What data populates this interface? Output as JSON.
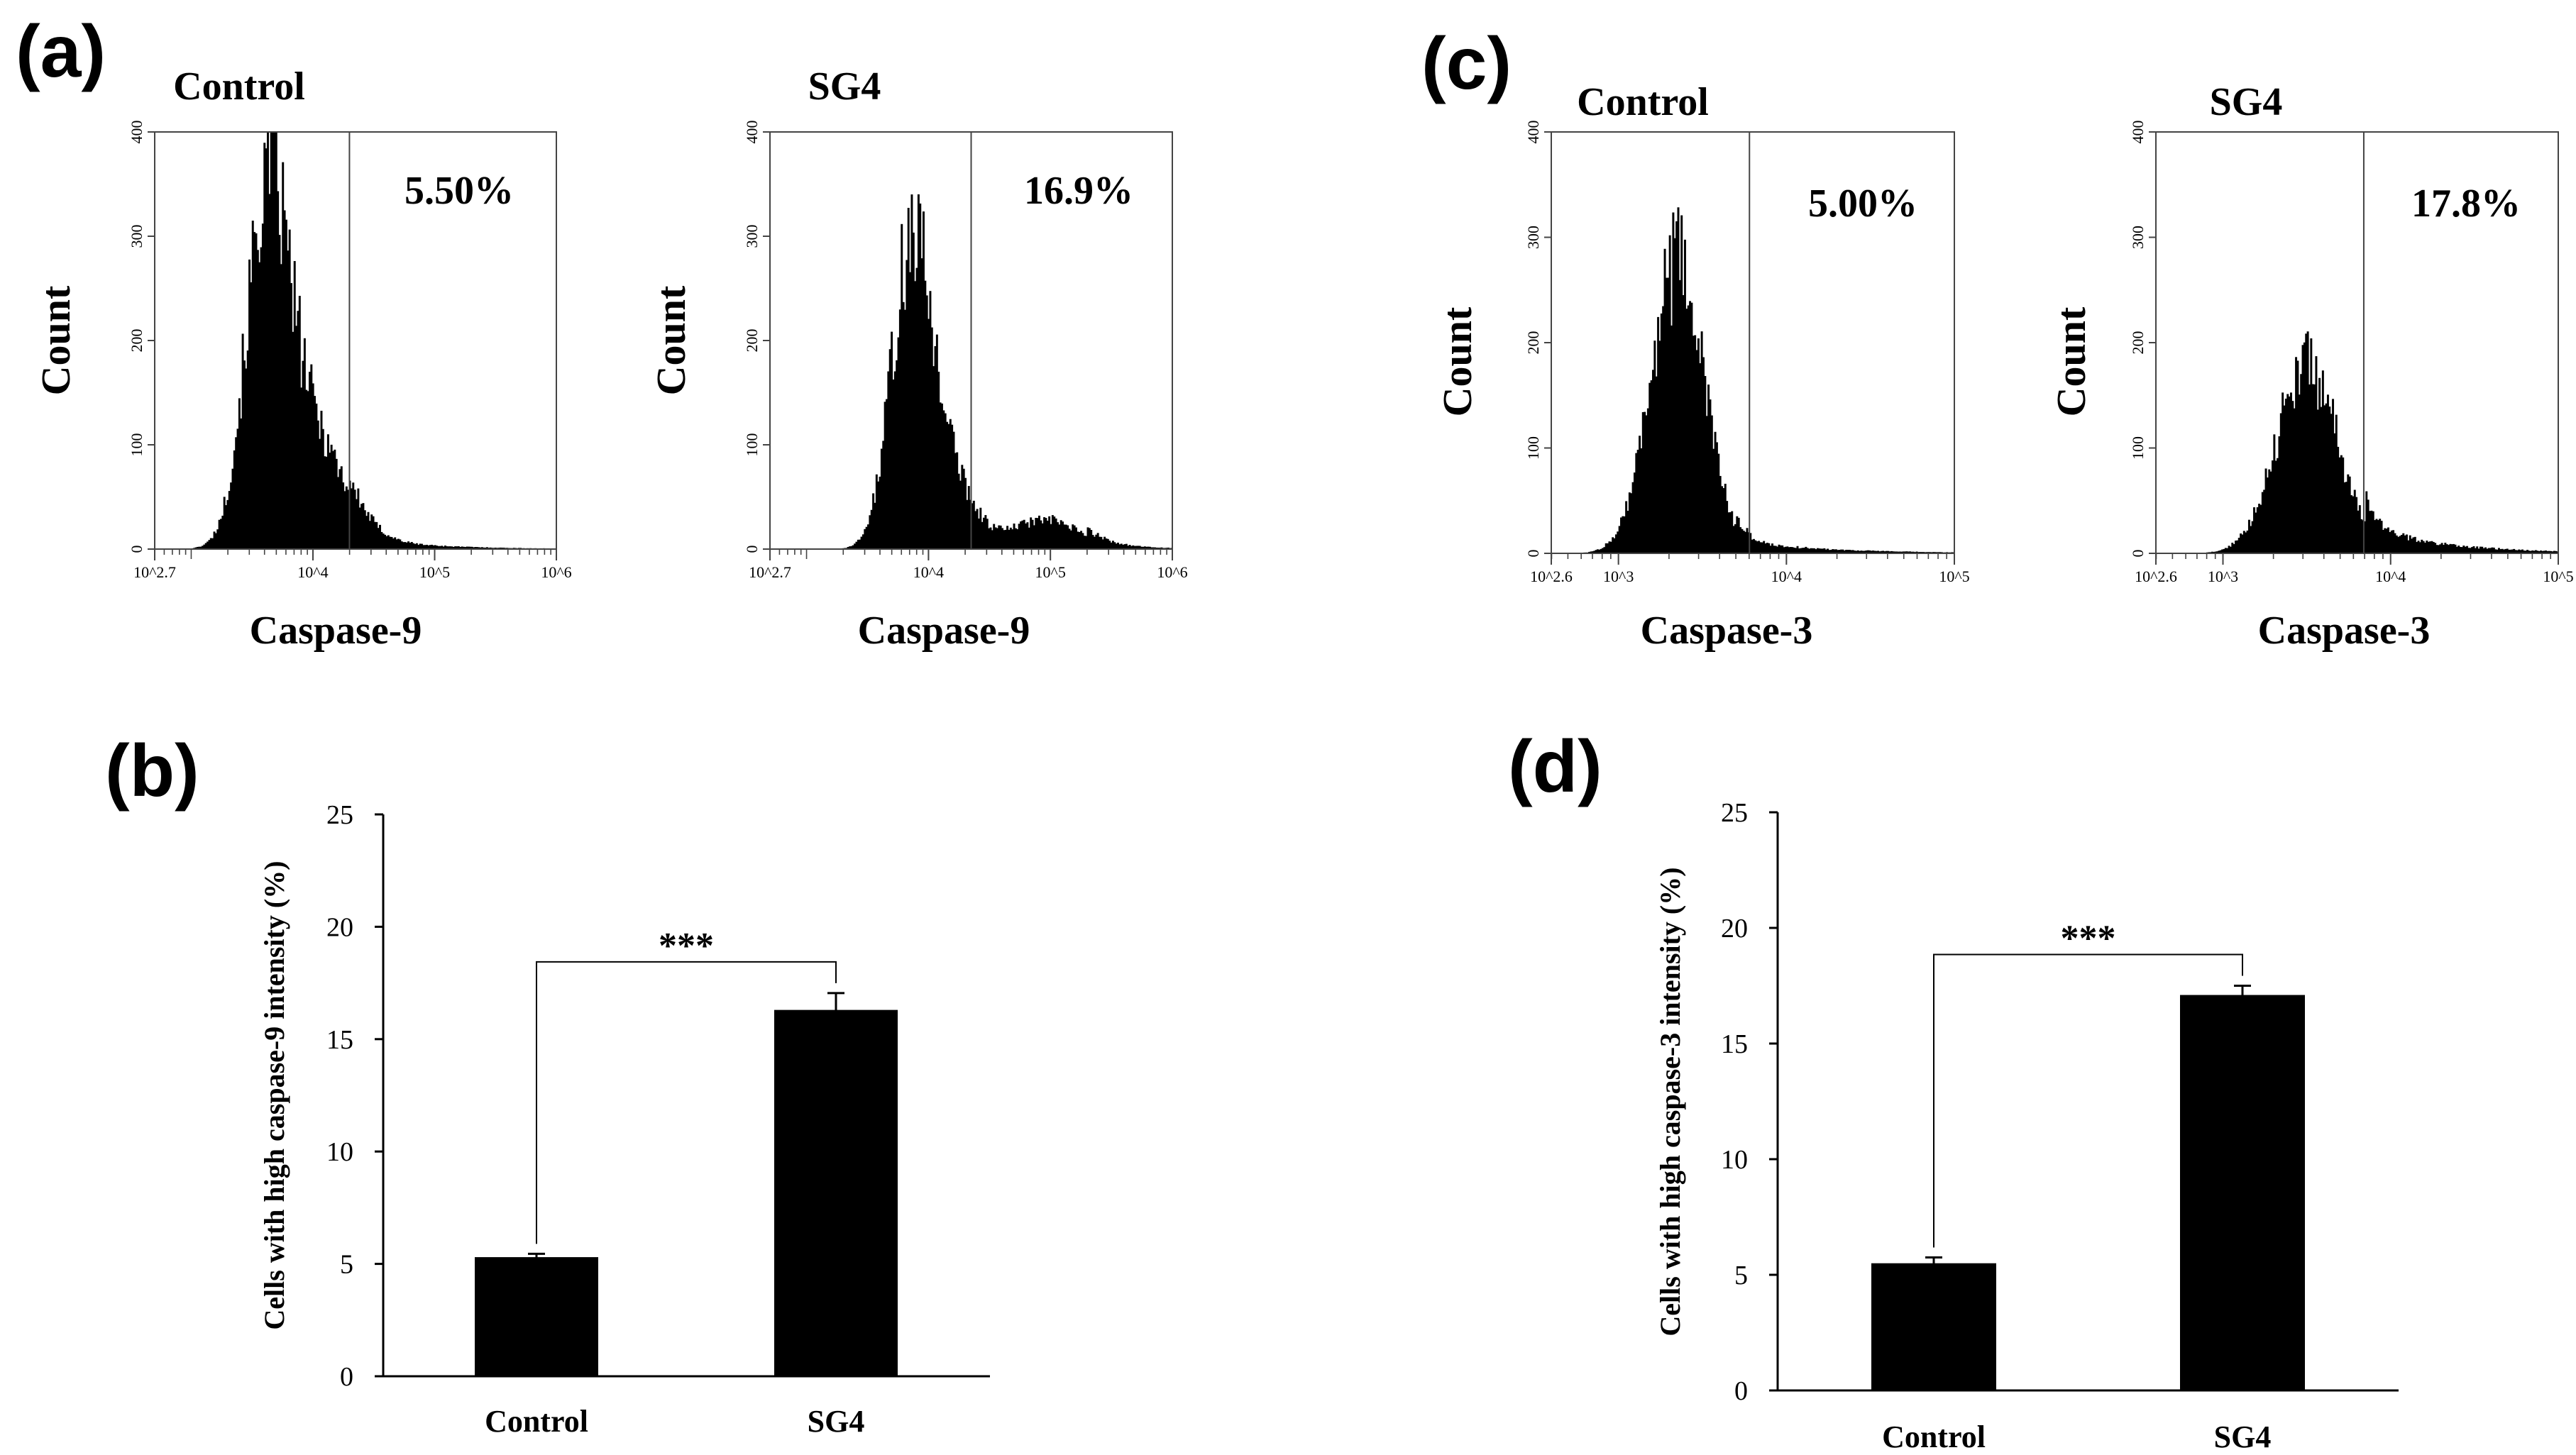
{
  "figure": {
    "panels": [
      {
        "letter": "(a)"
      },
      {
        "letter": "(b)"
      },
      {
        "letter": "(c)"
      },
      {
        "letter": "(d)"
      }
    ]
  },
  "chart_data": [
    {
      "id": "a-control",
      "type": "histogram",
      "panel": "(a)",
      "title": "Control",
      "xlabel": "Caspase-9",
      "ylabel": "Count",
      "ylim": [
        0,
        400
      ],
      "yticks": [
        "0",
        "100",
        "200",
        "300",
        "400"
      ],
      "x_log": true,
      "xlim_log10": [
        2.7,
        6
      ],
      "xticks": [
        {
          "pos": 2.7,
          "label": "10^2.7"
        },
        {
          "pos": 4,
          "label": "10^4"
        },
        {
          "pos": 5,
          "label": "10^5"
        },
        {
          "pos": 6,
          "label": "10^6"
        }
      ],
      "gate_log10": 4.3,
      "percent_label": "5.50%",
      "distribution": [
        {
          "mu": 3.62,
          "sigma": 0.17,
          "amp": 300
        },
        {
          "mu": 3.95,
          "sigma": 0.28,
          "amp": 120
        }
      ],
      "tail": {
        "start": 4.3,
        "level": 12,
        "decay": 0.55
      }
    },
    {
      "id": "a-sg4",
      "type": "histogram",
      "panel": "(a)",
      "title": "SG4",
      "xlabel": "Caspase-9",
      "ylabel": "Count",
      "ylim": [
        0,
        400
      ],
      "yticks": [
        "0",
        "100",
        "200",
        "300",
        "400"
      ],
      "x_log": true,
      "xlim_log10": [
        2.7,
        6
      ],
      "xticks": [
        {
          "pos": 2.7,
          "label": "10^2.7"
        },
        {
          "pos": 4,
          "label": "10^4"
        },
        {
          "pos": 5,
          "label": "10^5"
        },
        {
          "pos": 6,
          "label": "10^6"
        }
      ],
      "gate_log10": 4.35,
      "percent_label": "16.9%",
      "distribution": [
        {
          "mu": 3.85,
          "sigma": 0.16,
          "amp": 255
        },
        {
          "mu": 4.1,
          "sigma": 0.22,
          "amp": 85
        },
        {
          "mu": 4.95,
          "sigma": 0.28,
          "amp": 28
        }
      ],
      "tail": {
        "start": 5.3,
        "level": 6,
        "decay": 0.4
      }
    },
    {
      "id": "c-control",
      "type": "histogram",
      "panel": "(c)",
      "title": "Control",
      "xlabel": "Caspase-3",
      "ylabel": "Count",
      "ylim": [
        0,
        400
      ],
      "yticks": [
        "0",
        "100",
        "200",
        "300",
        "400"
      ],
      "x_log": true,
      "xlim_log10": [
        2.6,
        5
      ],
      "xticks": [
        {
          "pos": 2.6,
          "label": "10^2.6"
        },
        {
          "pos": 3,
          "label": "10^3"
        },
        {
          "pos": 4,
          "label": "10^4"
        },
        {
          "pos": 5,
          "label": "10^5"
        }
      ],
      "gate_log10": 3.78,
      "percent_label": "5.00%",
      "distribution": [
        {
          "mu": 3.35,
          "sigma": 0.16,
          "amp": 275
        }
      ],
      "tail": {
        "start": 3.7,
        "level": 12,
        "decay": 0.5
      }
    },
    {
      "id": "c-sg4",
      "type": "histogram",
      "panel": "(c)",
      "title": "SG4",
      "xlabel": "Caspase-3",
      "ylabel": "Count",
      "ylim": [
        0,
        400
      ],
      "yticks": [
        "0",
        "100",
        "200",
        "300",
        "400"
      ],
      "x_log": true,
      "xlim_log10": [
        2.6,
        5
      ],
      "xticks": [
        {
          "pos": 2.6,
          "label": "10^2.6"
        },
        {
          "pos": 3,
          "label": "10^3"
        },
        {
          "pos": 4,
          "label": "10^4"
        },
        {
          "pos": 5,
          "label": "10^5"
        }
      ],
      "gate_log10": 3.84,
      "percent_label": "17.8%",
      "distribution": [
        {
          "mu": 3.5,
          "sigma": 0.18,
          "amp": 180
        }
      ],
      "tail": {
        "start": 3.85,
        "level": 25,
        "decay": 0.45
      }
    },
    {
      "id": "b",
      "type": "bar",
      "panel": "(b)",
      "categories": [
        "Control",
        "SG4"
      ],
      "values": [
        5.3,
        16.3
      ],
      "errors": [
        0.15,
        0.75
      ],
      "ylabel": "Cells with high caspase-9 intensity (%)",
      "ylim": [
        0,
        25
      ],
      "yticks": [
        "0",
        "5",
        "10",
        "15",
        "20",
        "25"
      ],
      "significance": "***"
    },
    {
      "id": "d",
      "type": "bar",
      "panel": "(d)",
      "categories": [
        "Control",
        "SG4"
      ],
      "values": [
        5.5,
        17.1
      ],
      "errors": [
        0.25,
        0.4
      ],
      "ylabel": "Cells with high caspase-3 intensity (%)",
      "ylim": [
        0,
        25
      ],
      "yticks": [
        "0",
        "5",
        "10",
        "15",
        "20",
        "25"
      ],
      "significance": "***"
    }
  ]
}
